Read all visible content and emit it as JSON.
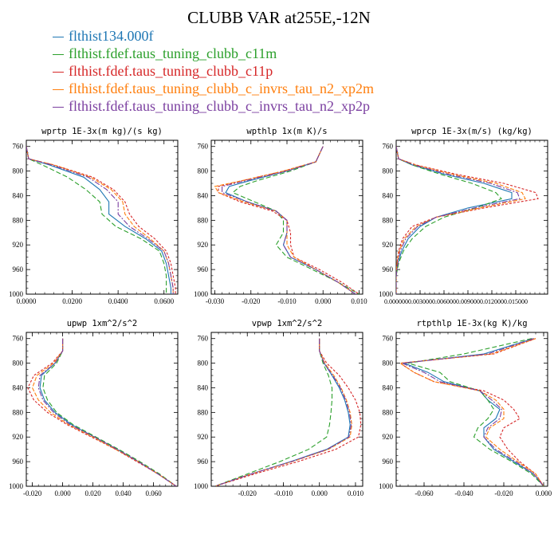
{
  "figure": {
    "title": "CLUBB VAR at255E,-12N"
  },
  "legend": [
    {
      "name": "flthist134.000f",
      "color": "#1f77b4"
    },
    {
      "name": "flthist.fdef.taus_tuning_clubb_c11m",
      "color": "#2ca02c"
    },
    {
      "name": "flthist.fdef.taus_tuning_clubb_c11p",
      "color": "#d62728"
    },
    {
      "name": "flthist.fdef.taus_tuning_clubb_c_invrs_tau_n2_xp2m",
      "color": "#ff7f0e"
    },
    {
      "name": "flthist.fdef.taus_tuning_clubb_c_invrs_tau_n2_xp2p",
      "color": "#7b3fa0"
    }
  ],
  "chart_data": [
    {
      "type": "line",
      "title": "wprtp  1E-3x(m kg)/(s kg)",
      "xlim": [
        0.0,
        0.066
      ],
      "ylim": [
        1000,
        750
      ],
      "xticks": [
        "0.0000",
        "0.0200",
        "0.0400",
        "0.0600"
      ],
      "xtick_values": [
        0.0,
        0.02,
        0.04,
        0.06
      ],
      "yticks": [
        "760",
        "800",
        "840",
        "880",
        "920",
        "960",
        "1000"
      ],
      "ytick_values": [
        760,
        800,
        840,
        880,
        920,
        960,
        1000
      ],
      "y": [
        760,
        780,
        790,
        810,
        830,
        850,
        870,
        890,
        910,
        930,
        950,
        970,
        990,
        1000
      ],
      "series": [
        {
          "values": [
            0.0,
            0.001,
            0.01,
            0.025,
            0.032,
            0.036,
            0.036,
            0.043,
            0.052,
            0.059,
            0.061,
            0.062,
            0.063,
            0.063
          ]
        },
        {
          "values": [
            0.0,
            0.001,
            0.007,
            0.018,
            0.026,
            0.032,
            0.033,
            0.039,
            0.05,
            0.058,
            0.06,
            0.061,
            0.061,
            0.061
          ]
        },
        {
          "values": [
            0.0,
            0.001,
            0.012,
            0.029,
            0.038,
            0.043,
            0.045,
            0.049,
            0.056,
            0.061,
            0.063,
            0.064,
            0.065,
            0.065
          ]
        },
        {
          "values": [
            0.0,
            0.001,
            0.012,
            0.028,
            0.037,
            0.042,
            0.043,
            0.047,
            0.054,
            0.06,
            0.062,
            0.063,
            0.064,
            0.064
          ]
        },
        {
          "values": [
            0.0,
            0.001,
            0.011,
            0.027,
            0.035,
            0.04,
            0.04,
            0.045,
            0.053,
            0.06,
            0.062,
            0.063,
            0.064,
            0.064
          ]
        }
      ]
    },
    {
      "type": "line",
      "title": "wpthlp  1x(m K)/s",
      "xlim": [
        -0.031,
        0.011
      ],
      "ylim": [
        1000,
        750
      ],
      "xticks": [
        "-0.030",
        "-0.020",
        "-0.010",
        "0.000",
        "0.010"
      ],
      "xtick_values": [
        -0.03,
        -0.02,
        -0.01,
        0.0,
        0.01
      ],
      "yticks": [
        "760",
        "800",
        "840",
        "880",
        "920",
        "960",
        "1000"
      ],
      "ytick_values": [
        760,
        800,
        840,
        880,
        920,
        960,
        1000
      ],
      "y": [
        760,
        785,
        800,
        815,
        825,
        835,
        850,
        865,
        880,
        900,
        920,
        940,
        960,
        980,
        1000
      ],
      "series": [
        {
          "values": [
            0.0,
            -0.002,
            -0.01,
            -0.02,
            -0.026,
            -0.027,
            -0.021,
            -0.013,
            -0.01,
            -0.01,
            -0.011,
            -0.009,
            -0.002,
            0.004,
            0.009
          ]
        },
        {
          "values": [
            0.0,
            -0.002,
            -0.009,
            -0.018,
            -0.023,
            -0.025,
            -0.019,
            -0.013,
            -0.011,
            -0.011,
            -0.013,
            -0.01,
            -0.003,
            0.004,
            0.01
          ]
        },
        {
          "values": [
            0.0,
            -0.002,
            -0.011,
            -0.022,
            -0.029,
            -0.029,
            -0.023,
            -0.014,
            -0.01,
            -0.009,
            -0.009,
            -0.008,
            -0.001,
            0.005,
            0.01
          ]
        },
        {
          "values": [
            0.0,
            -0.002,
            -0.011,
            -0.022,
            -0.03,
            -0.029,
            -0.022,
            -0.013,
            -0.01,
            -0.01,
            -0.01,
            -0.008,
            -0.002,
            0.004,
            0.009
          ]
        },
        {
          "values": [
            0.0,
            -0.002,
            -0.01,
            -0.021,
            -0.028,
            -0.028,
            -0.021,
            -0.013,
            -0.01,
            -0.01,
            -0.011,
            -0.009,
            -0.002,
            0.004,
            0.009
          ]
        }
      ]
    },
    {
      "type": "line",
      "title": "wprcp  1E-3x(m/s) (kg/kg)",
      "xlim": [
        0.0,
        0.019
      ],
      "ylim": [
        1000,
        750
      ],
      "xticks": [
        "0.000000",
        "0.003000",
        "0.006000",
        "0.009000",
        "0.012000",
        "0.015000"
      ],
      "xtick_values": [
        0.0,
        0.003,
        0.006,
        0.009,
        0.012,
        0.015
      ],
      "yticks": [
        "760",
        "800",
        "840",
        "880",
        "920",
        "960",
        "1000"
      ],
      "ytick_values": [
        760,
        800,
        840,
        880,
        920,
        960,
        1000
      ],
      "y": [
        760,
        780,
        790,
        805,
        820,
        835,
        845,
        860,
        875,
        890,
        910,
        930,
        950,
        970,
        1000
      ],
      "series": [
        {
          "values": [
            0.0,
            0.0003,
            0.002,
            0.006,
            0.011,
            0.0145,
            0.0145,
            0.009,
            0.005,
            0.003,
            0.0015,
            0.0007,
            0.0002,
            0.0,
            0.0
          ]
        },
        {
          "values": [
            0.0,
            0.0003,
            0.002,
            0.0055,
            0.0095,
            0.0125,
            0.0132,
            0.01,
            0.006,
            0.0037,
            0.002,
            0.0009,
            0.0003,
            0.0,
            0.0
          ]
        },
        {
          "values": [
            0.0,
            0.0003,
            0.0025,
            0.0075,
            0.0135,
            0.0175,
            0.0178,
            0.011,
            0.005,
            0.002,
            0.0008,
            0.0003,
            0.0001,
            0.0,
            0.0
          ]
        },
        {
          "values": [
            0.0,
            0.0003,
            0.0024,
            0.007,
            0.0125,
            0.0158,
            0.0162,
            0.0105,
            0.005,
            0.0025,
            0.001,
            0.0004,
            0.0001,
            0.0,
            0.0
          ]
        },
        {
          "values": [
            0.0,
            0.0003,
            0.0022,
            0.0065,
            0.0118,
            0.0152,
            0.0155,
            0.0098,
            0.005,
            0.0027,
            0.0012,
            0.0005,
            0.0002,
            0.0,
            0.0
          ]
        }
      ]
    },
    {
      "type": "line",
      "title": "upwp  1xm^2/s^2",
      "xlim": [
        -0.024,
        0.076
      ],
      "ylim": [
        1000,
        750
      ],
      "xticks": [
        "-0.020",
        "0.000",
        "0.020",
        "0.040",
        "0.060"
      ],
      "xtick_values": [
        -0.02,
        0.0,
        0.02,
        0.04,
        0.06
      ],
      "yticks": [
        "760",
        "800",
        "840",
        "880",
        "920",
        "960",
        "1000"
      ],
      "ytick_values": [
        760,
        800,
        840,
        880,
        920,
        960,
        1000
      ],
      "y": [
        760,
        780,
        800,
        820,
        840,
        860,
        880,
        900,
        920,
        940,
        960,
        980,
        1000
      ],
      "series": [
        {
          "values": [
            0.0,
            0.0,
            -0.005,
            -0.014,
            -0.015,
            -0.012,
            -0.005,
            0.006,
            0.021,
            0.036,
            0.05,
            0.063,
            0.075
          ]
        },
        {
          "values": [
            0.0,
            0.0,
            -0.004,
            -0.012,
            -0.013,
            -0.01,
            -0.004,
            0.007,
            0.022,
            0.037,
            0.051,
            0.064,
            0.075
          ]
        },
        {
          "values": [
            0.0,
            0.0,
            -0.007,
            -0.019,
            -0.023,
            -0.019,
            -0.01,
            0.003,
            0.019,
            0.035,
            0.049,
            0.063,
            0.075
          ]
        },
        {
          "values": [
            0.0,
            0.0,
            -0.006,
            -0.017,
            -0.02,
            -0.016,
            -0.008,
            0.004,
            0.02,
            0.035,
            0.05,
            0.063,
            0.075
          ]
        },
        {
          "values": [
            0.0,
            0.0,
            -0.005,
            -0.015,
            -0.016,
            -0.013,
            -0.006,
            0.005,
            0.021,
            0.036,
            0.05,
            0.063,
            0.075
          ]
        }
      ]
    },
    {
      "type": "line",
      "title": "vpwp  1xm^2/s^2",
      "xlim": [
        -0.03,
        0.012
      ],
      "ylim": [
        1000,
        750
      ],
      "xticks": [
        "-0.020",
        "-0.010",
        "0.000",
        "0.010"
      ],
      "xtick_values": [
        -0.02,
        -0.01,
        0.0,
        0.01
      ],
      "yticks": [
        "760",
        "800",
        "840",
        "880",
        "920",
        "960",
        "1000"
      ],
      "ytick_values": [
        760,
        800,
        840,
        880,
        920,
        960,
        1000
      ],
      "y": [
        760,
        780,
        800,
        820,
        840,
        860,
        880,
        900,
        920,
        940,
        960,
        980,
        1000
      ],
      "series": [
        {
          "values": [
            0.0,
            0.0,
            0.0013,
            0.0035,
            0.0055,
            0.007,
            0.008,
            0.0085,
            0.008,
            0.002,
            -0.008,
            -0.019,
            -0.029
          ]
        },
        {
          "values": [
            0.0,
            0.0,
            0.001,
            0.0025,
            0.0035,
            0.0035,
            0.0032,
            0.0028,
            0.002,
            -0.003,
            -0.011,
            -0.02,
            -0.029
          ]
        },
        {
          "values": [
            0.0,
            0.0,
            0.002,
            0.0055,
            0.008,
            0.01,
            0.0112,
            0.0115,
            0.0108,
            0.0045,
            -0.006,
            -0.018,
            -0.029
          ]
        },
        {
          "values": [
            0.0,
            0.0,
            0.0015,
            0.004,
            0.006,
            0.0075,
            0.0085,
            0.009,
            0.0085,
            0.0025,
            -0.0075,
            -0.019,
            -0.029
          ]
        },
        {
          "values": [
            0.0,
            0.0,
            0.0013,
            0.0037,
            0.0058,
            0.0073,
            0.0083,
            0.0088,
            0.0082,
            0.0022,
            -0.0078,
            -0.019,
            -0.029
          ]
        }
      ]
    },
    {
      "type": "line",
      "title": "rtpthlp  1E-3x(kg K)/kg",
      "xlim": [
        -0.074,
        0.002
      ],
      "ylim": [
        1000,
        750
      ],
      "xticks": [
        "-0.060",
        "-0.040",
        "-0.020",
        "0.000"
      ],
      "xtick_values": [
        -0.06,
        -0.04,
        -0.02,
        0.0
      ],
      "yticks": [
        "760",
        "800",
        "840",
        "880",
        "920",
        "960",
        "1000"
      ],
      "ytick_values": [
        760,
        800,
        840,
        880,
        920,
        960,
        1000
      ],
      "y": [
        760,
        785,
        800,
        815,
        830,
        845,
        860,
        875,
        890,
        905,
        920,
        940,
        960,
        980,
        1000
      ],
      "series": [
        {
          "values": [
            -0.005,
            -0.03,
            -0.07,
            -0.058,
            -0.05,
            -0.032,
            -0.028,
            -0.022,
            -0.024,
            -0.03,
            -0.03,
            -0.025,
            -0.015,
            -0.005,
            0.0
          ]
        },
        {
          "values": [
            -0.006,
            -0.04,
            -0.068,
            -0.052,
            -0.047,
            -0.032,
            -0.028,
            -0.025,
            -0.028,
            -0.033,
            -0.035,
            -0.027,
            -0.016,
            -0.006,
            0.0
          ]
        },
        {
          "values": [
            -0.004,
            -0.025,
            -0.072,
            -0.065,
            -0.055,
            -0.03,
            -0.02,
            -0.015,
            -0.012,
            -0.02,
            -0.022,
            -0.018,
            -0.012,
            -0.004,
            0.0
          ]
        },
        {
          "values": [
            -0.004,
            -0.026,
            -0.072,
            -0.065,
            -0.055,
            -0.032,
            -0.024,
            -0.02,
            -0.02,
            -0.027,
            -0.029,
            -0.022,
            -0.013,
            -0.004,
            0.0
          ]
        },
        {
          "values": [
            -0.005,
            -0.028,
            -0.071,
            -0.06,
            -0.052,
            -0.032,
            -0.026,
            -0.021,
            -0.022,
            -0.028,
            -0.03,
            -0.024,
            -0.014,
            -0.005,
            0.0
          ]
        }
      ]
    }
  ]
}
